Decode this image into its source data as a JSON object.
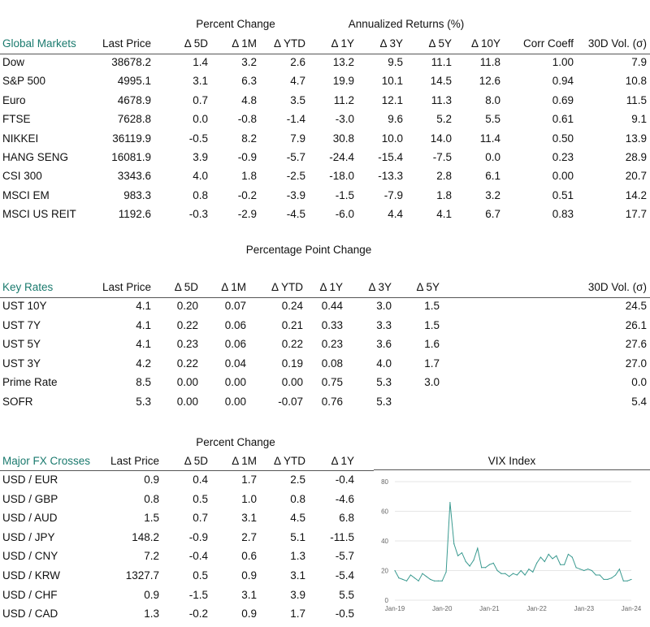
{
  "global_markets": {
    "title": "Global Markets",
    "group_headers": [
      "Percent Change",
      "Annualized Returns (%)"
    ],
    "columns": [
      "Last Price",
      "Δ 5D",
      "Δ 1M",
      "Δ YTD",
      "Δ 1Y",
      "Δ 3Y",
      "Δ 5Y",
      "Δ 10Y",
      "Corr Coeff",
      "30D Vol. (σ)"
    ],
    "rows": [
      [
        "Dow",
        "38678.2",
        "1.4",
        "3.2",
        "2.6",
        "13.2",
        "9.5",
        "11.1",
        "11.8",
        "1.00",
        "7.9"
      ],
      [
        "S&P 500",
        "4995.1",
        "3.1",
        "6.3",
        "4.7",
        "19.9",
        "10.1",
        "14.5",
        "12.6",
        "0.94",
        "10.8"
      ],
      [
        "Euro",
        "4678.9",
        "0.7",
        "4.8",
        "3.5",
        "11.2",
        "12.1",
        "11.3",
        "8.0",
        "0.69",
        "11.5"
      ],
      [
        "FTSE",
        "7628.8",
        "0.0",
        "-0.8",
        "-1.4",
        "-3.0",
        "9.6",
        "5.2",
        "5.5",
        "0.61",
        "9.1"
      ],
      [
        "NIKKEI",
        "36119.9",
        "-0.5",
        "8.2",
        "7.9",
        "30.8",
        "10.0",
        "14.0",
        "11.4",
        "0.50",
        "13.9"
      ],
      [
        "HANG SENG",
        "16081.9",
        "3.9",
        "-0.9",
        "-5.7",
        "-24.4",
        "-15.4",
        "-7.5",
        "0.0",
        "0.23",
        "28.9"
      ],
      [
        "CSI 300",
        "3343.6",
        "4.0",
        "1.8",
        "-2.5",
        "-18.0",
        "-13.3",
        "2.8",
        "6.1",
        "0.00",
        "20.7"
      ],
      [
        "MSCI EM",
        "983.3",
        "0.8",
        "-0.2",
        "-3.9",
        "-1.5",
        "-7.9",
        "1.8",
        "3.2",
        "0.51",
        "14.2"
      ],
      [
        "MSCI US REIT",
        "1192.6",
        "-0.3",
        "-2.9",
        "-4.5",
        "-6.0",
        "4.4",
        "4.1",
        "6.7",
        "0.83",
        "17.7"
      ]
    ]
  },
  "key_rates": {
    "title": "Key Rates",
    "group_header": "Percentage Point Change",
    "columns": [
      "Last Price",
      "Δ 5D",
      "Δ 1M",
      "Δ YTD",
      "Δ 1Y",
      "Δ 3Y",
      "Δ 5Y",
      "30D Vol. (σ)"
    ],
    "rows": [
      [
        "UST 10Y",
        "4.1",
        "0.20",
        "0.07",
        "0.24",
        "0.44",
        "3.0",
        "1.5",
        "24.5"
      ],
      [
        "UST 7Y",
        "4.1",
        "0.22",
        "0.06",
        "0.21",
        "0.33",
        "3.3",
        "1.5",
        "26.1"
      ],
      [
        "UST 5Y",
        "4.1",
        "0.23",
        "0.06",
        "0.22",
        "0.23",
        "3.6",
        "1.6",
        "27.6"
      ],
      [
        "UST 3Y",
        "4.2",
        "0.22",
        "0.04",
        "0.19",
        "0.08",
        "4.0",
        "1.7",
        "27.0"
      ],
      [
        "Prime Rate",
        "8.5",
        "0.00",
        "0.00",
        "0.00",
        "0.75",
        "5.3",
        "3.0",
        "0.0"
      ],
      [
        "SOFR",
        "5.3",
        "0.00",
        "0.00",
        "-0.07",
        "0.76",
        "5.3",
        "",
        "5.4"
      ]
    ]
  },
  "fx_crosses": {
    "title": "Major FX Crosses",
    "group_header": "Percent Change",
    "columns": [
      "Last Price",
      "Δ 5D",
      "Δ 1M",
      "Δ YTD",
      "Δ 1Y"
    ],
    "rows": [
      [
        "USD / EUR",
        "0.9",
        "0.4",
        "1.7",
        "2.5",
        "-0.4"
      ],
      [
        "USD / GBP",
        "0.8",
        "0.5",
        "1.0",
        "0.8",
        "-4.6"
      ],
      [
        "USD / AUD",
        "1.5",
        "0.7",
        "3.1",
        "4.5",
        "6.8"
      ],
      [
        "USD / JPY",
        "148.2",
        "-0.9",
        "2.7",
        "5.1",
        "-11.5"
      ],
      [
        "USD / CNY",
        "7.2",
        "-0.4",
        "0.6",
        "1.3",
        "-5.7"
      ],
      [
        "USD / KRW",
        "1327.7",
        "0.5",
        "0.9",
        "3.1",
        "-5.4"
      ],
      [
        "USD / CHF",
        "0.9",
        "-1.5",
        "3.1",
        "3.9",
        "5.5"
      ],
      [
        "USD / CAD",
        "1.3",
        "-0.2",
        "0.9",
        "1.7",
        "-0.5"
      ]
    ]
  },
  "colors": {
    "accent": "#1a7a6e",
    "line": "#3a9a90",
    "grid": "#e6e6e6"
  },
  "chart_data": {
    "type": "line",
    "title": "VIX Index",
    "x_tick_labels": [
      "Jan-19",
      "Jan-20",
      "Jan-21",
      "Jan-22",
      "Jan-23",
      "Jan-24"
    ],
    "y_ticks": [
      0,
      20,
      40,
      60,
      80
    ],
    "ylim": [
      0,
      80
    ],
    "grid": true,
    "x_start": "2019-01",
    "x_end": "2024-01",
    "x": [
      "2019-01",
      "2019-02",
      "2019-03",
      "2019-04",
      "2019-05",
      "2019-06",
      "2019-07",
      "2019-08",
      "2019-09",
      "2019-10",
      "2019-11",
      "2019-12",
      "2020-01",
      "2020-02",
      "2020-03",
      "2020-04",
      "2020-05",
      "2020-06",
      "2020-07",
      "2020-08",
      "2020-09",
      "2020-10",
      "2020-11",
      "2020-12",
      "2021-01",
      "2021-02",
      "2021-03",
      "2021-04",
      "2021-05",
      "2021-06",
      "2021-07",
      "2021-08",
      "2021-09",
      "2021-10",
      "2021-11",
      "2021-12",
      "2022-01",
      "2022-02",
      "2022-03",
      "2022-04",
      "2022-05",
      "2022-06",
      "2022-07",
      "2022-08",
      "2022-09",
      "2022-10",
      "2022-11",
      "2022-12",
      "2023-01",
      "2023-02",
      "2023-03",
      "2023-04",
      "2023-05",
      "2023-06",
      "2023-07",
      "2023-08",
      "2023-09",
      "2023-10",
      "2023-11",
      "2023-12",
      "2024-01"
    ],
    "values": [
      20,
      15,
      14,
      13,
      17,
      15,
      13,
      18,
      16,
      14,
      13,
      13,
      13,
      19,
      66,
      38,
      30,
      32,
      26,
      23,
      27,
      35,
      22,
      22,
      24,
      25,
      20,
      18,
      18,
      16,
      18,
      17,
      20,
      17,
      21,
      19,
      25,
      29,
      26,
      31,
      28,
      30,
      24,
      24,
      31,
      29,
      22,
      21,
      20,
      21,
      20,
      17,
      17,
      14,
      14,
      15,
      17,
      21,
      13,
      13,
      14
    ]
  }
}
